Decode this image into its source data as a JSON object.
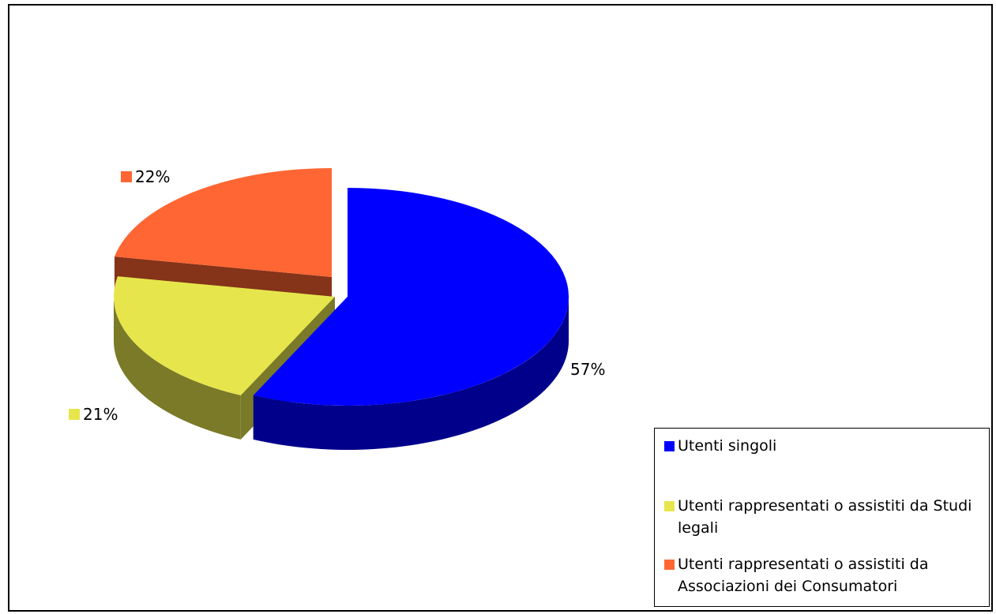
{
  "chart_data": {
    "type": "pie",
    "title": "",
    "slices": [
      {
        "label": "Utenti singoli",
        "value": 57,
        "display": "57%",
        "color": "#0000ff",
        "side_color": "#00008b"
      },
      {
        "label": "Utenti rappresentati o assistiti da Studi legali",
        "value": 21,
        "display": "21%",
        "color": "#e6e64c",
        "side_color": "#7a7a28"
      },
      {
        "label": "Utenti rappresentati o assistiti da Associazioni dei Consumatori",
        "value": 22,
        "display": "22%",
        "color": "#ff6633",
        "side_color": "#853319"
      }
    ],
    "exploded": true,
    "three_d": true,
    "legend_position": "bottom-right"
  },
  "legend": {
    "items": [
      {
        "text": "Utenti singoli",
        "color": "#0000ff"
      },
      {
        "text": "Utenti rappresentati o assistiti da Studi legali",
        "color": "#e6e64c"
      },
      {
        "text": "Utenti rappresentati o assistiti da Associazioni dei Consumatori",
        "color": "#ff6633"
      }
    ]
  }
}
